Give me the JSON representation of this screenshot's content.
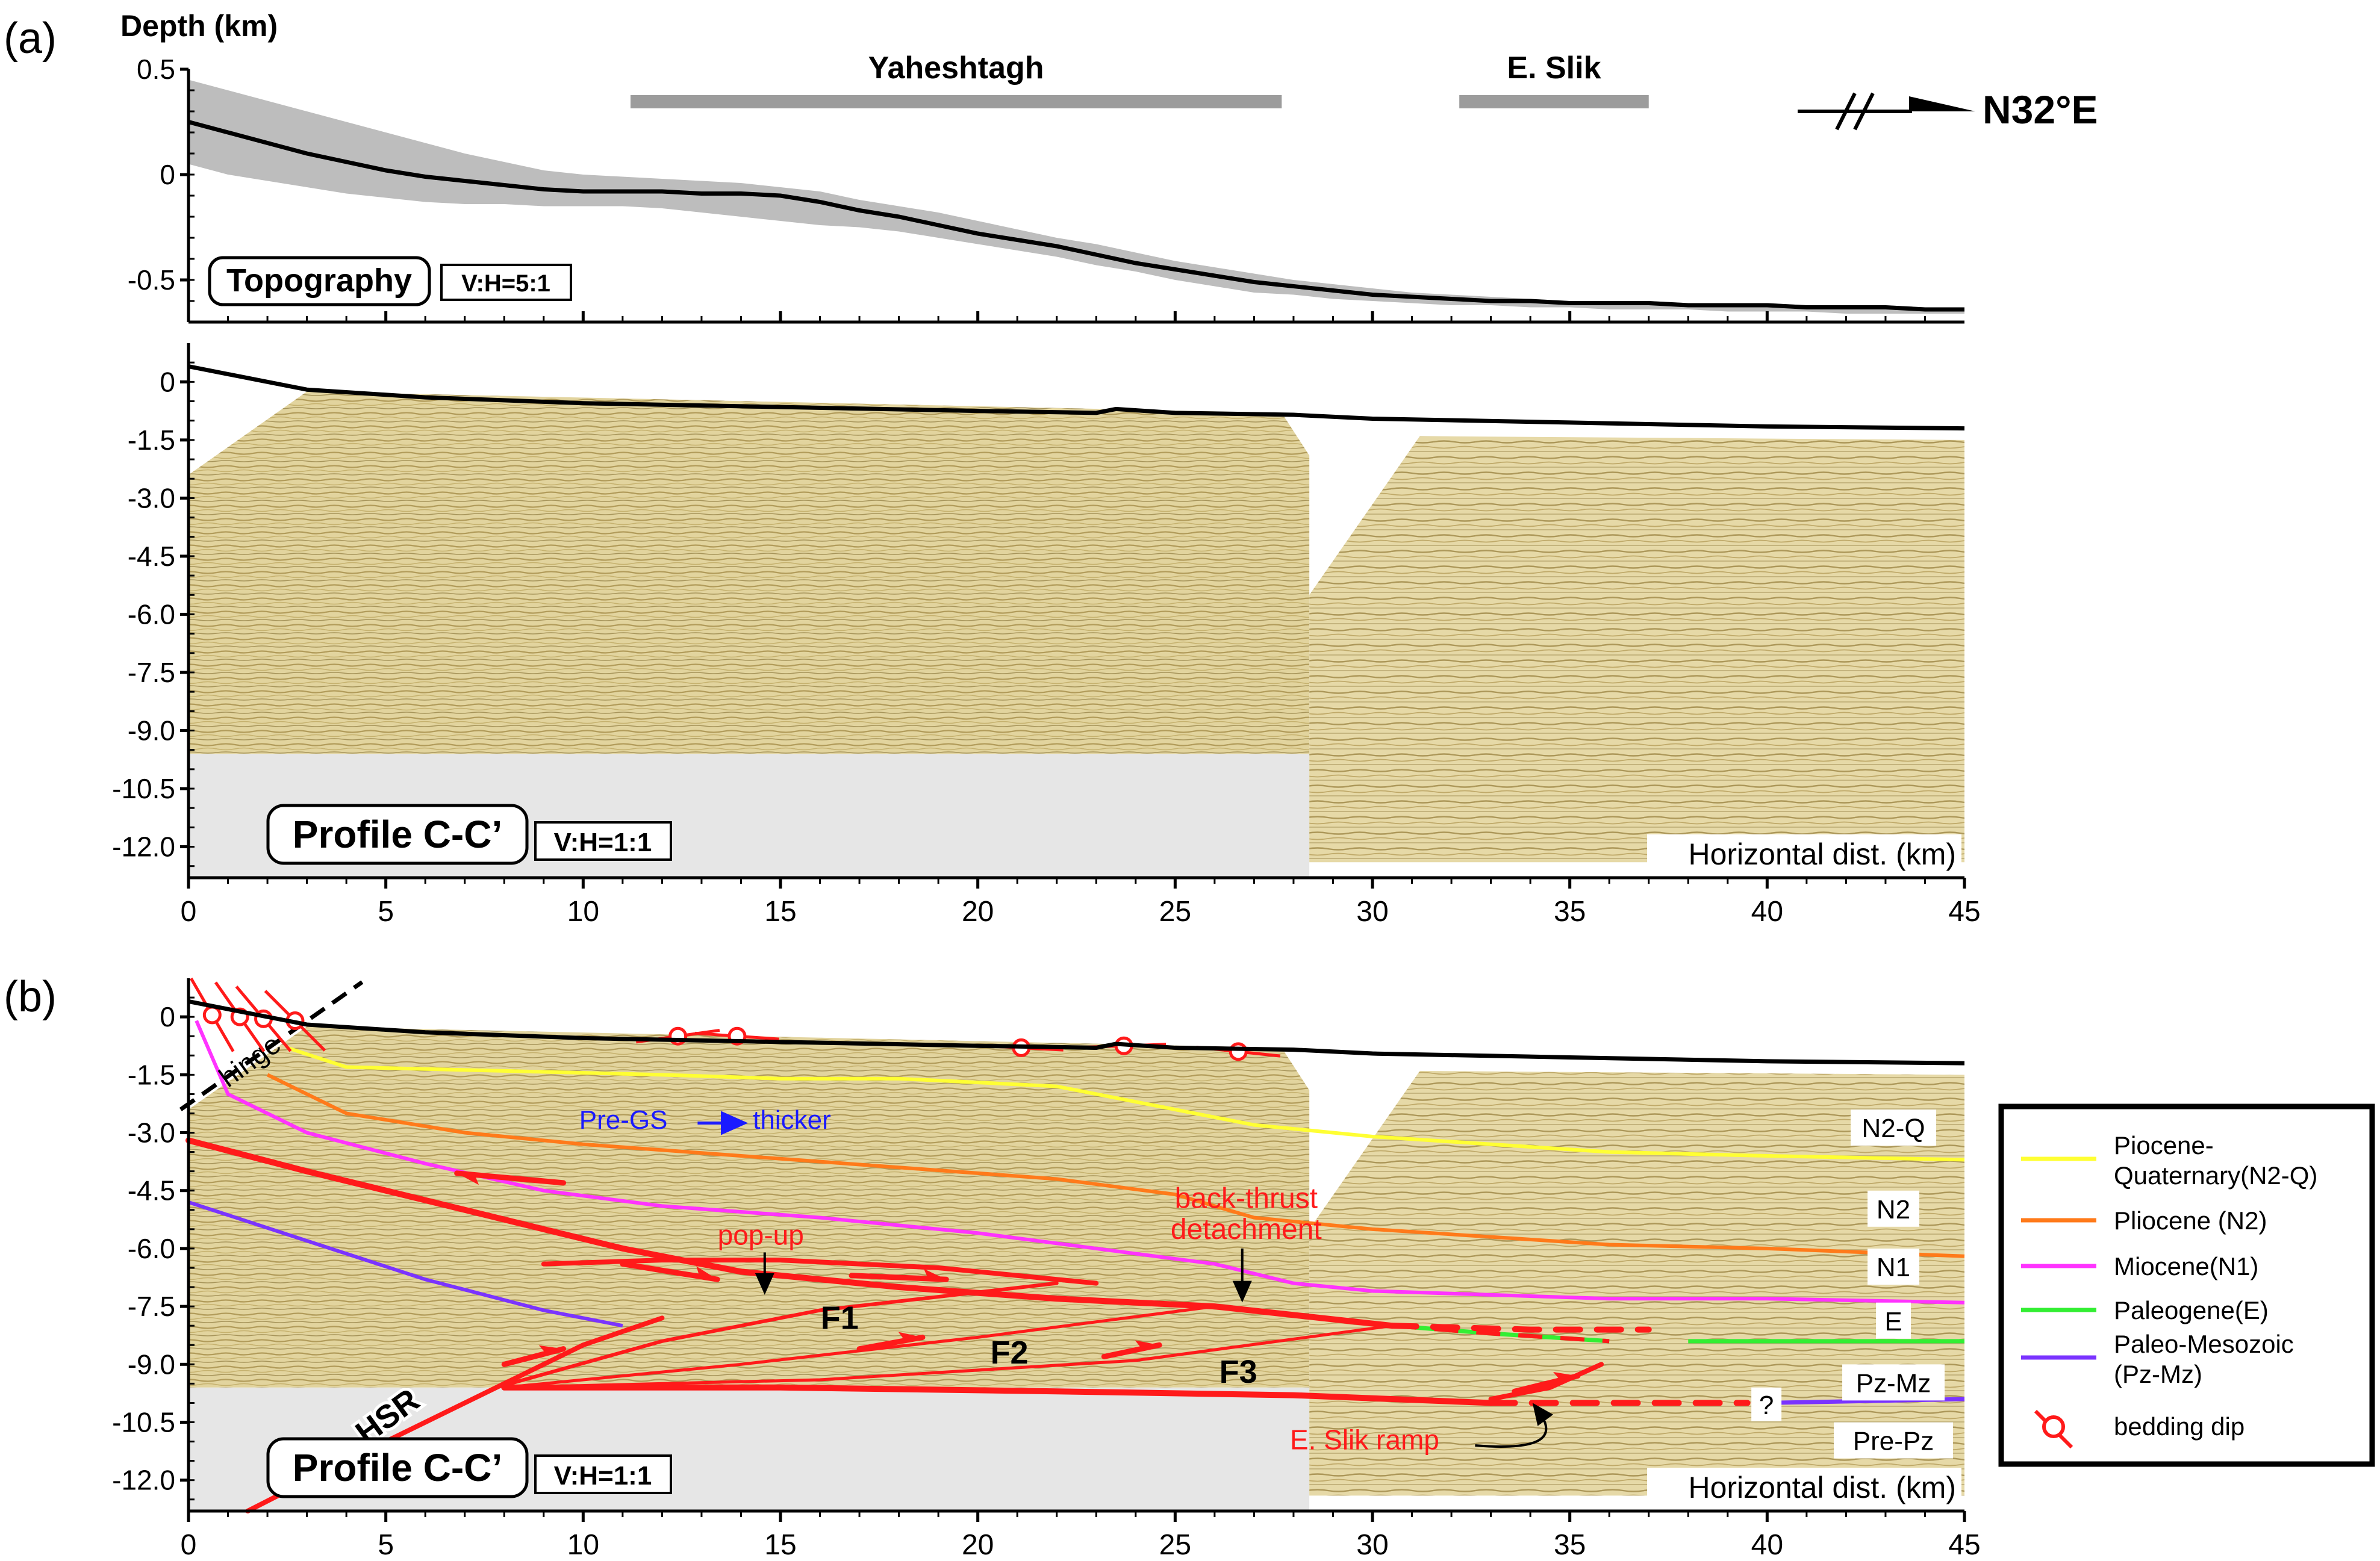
{
  "panel_labels": {
    "a": "(a)",
    "b": "(b)"
  },
  "depth_label": "Depth (km)",
  "direction": {
    "label": "N32°E"
  },
  "ranges": {
    "x": [
      0,
      45
    ],
    "topo_y": [
      0.5,
      -0.7
    ],
    "sec_y": [
      1.0,
      -12.8
    ]
  },
  "x_ticks": [
    "0",
    "5",
    "10",
    "15",
    "20",
    "25",
    "30",
    "35",
    "40",
    "45"
  ],
  "x_tick_values": [
    0,
    5,
    10,
    15,
    20,
    25,
    30,
    35,
    40,
    45
  ],
  "topo_ticks": [
    "0.5",
    "0",
    "-0.5"
  ],
  "topo_tick_values": [
    0.5,
    0,
    -0.5
  ],
  "sec_ticks": [
    "0",
    "-1.5",
    "-3.0",
    "-4.5",
    "-6.0",
    "-7.5",
    "-9.0",
    "-10.5",
    "-12.0"
  ],
  "sec_tick_values": [
    0,
    -1.5,
    -3.0,
    -4.5,
    -6.0,
    -7.5,
    -9.0,
    -10.5,
    -12.0
  ],
  "bars": [
    {
      "label": "Yaheshtagh",
      "x_start": 11.2,
      "x_end": 27.7
    },
    {
      "label": "E. Slik",
      "x_start": 32.2,
      "x_end": 37.0
    }
  ],
  "topo_box": {
    "label": "Topography",
    "scale": "V:H=5:1"
  },
  "profile_box": {
    "label": "Profile C-C’",
    "scale": "V:H=1:1"
  },
  "hdist_label": "Horizontal dist. (km)",
  "topography": {
    "x": [
      0,
      1,
      2,
      3,
      4,
      5,
      6,
      7,
      8,
      9,
      10,
      11,
      12,
      13,
      14,
      15,
      16,
      17,
      18,
      19,
      20,
      21,
      22,
      23,
      24,
      25,
      26,
      27,
      28,
      29,
      30,
      31,
      32,
      33,
      34,
      35,
      36,
      37,
      38,
      39,
      40,
      41,
      42,
      43,
      44,
      45
    ],
    "mean": [
      0.25,
      0.2,
      0.15,
      0.1,
      0.06,
      0.02,
      -0.01,
      -0.03,
      -0.05,
      -0.07,
      -0.08,
      -0.08,
      -0.08,
      -0.09,
      -0.09,
      -0.1,
      -0.13,
      -0.17,
      -0.2,
      -0.24,
      -0.28,
      -0.31,
      -0.34,
      -0.38,
      -0.42,
      -0.45,
      -0.48,
      -0.51,
      -0.53,
      -0.55,
      -0.57,
      -0.58,
      -0.59,
      -0.6,
      -0.6,
      -0.61,
      -0.61,
      -0.61,
      -0.62,
      -0.62,
      -0.62,
      -0.63,
      -0.63,
      -0.63,
      -0.64,
      -0.64
    ],
    "max": [
      0.45,
      0.4,
      0.35,
      0.3,
      0.25,
      0.2,
      0.15,
      0.1,
      0.06,
      0.02,
      0.0,
      -0.01,
      -0.02,
      -0.03,
      -0.04,
      -0.06,
      -0.08,
      -0.12,
      -0.15,
      -0.18,
      -0.22,
      -0.26,
      -0.3,
      -0.33,
      -0.37,
      -0.41,
      -0.44,
      -0.47,
      -0.5,
      -0.52,
      -0.54,
      -0.56,
      -0.57,
      -0.58,
      -0.59,
      -0.6,
      -0.6,
      -0.6,
      -0.61,
      -0.61,
      -0.61,
      -0.62,
      -0.62,
      -0.62,
      -0.63,
      -0.63
    ],
    "min": [
      0.05,
      0.0,
      -0.03,
      -0.06,
      -0.09,
      -0.11,
      -0.13,
      -0.14,
      -0.14,
      -0.15,
      -0.15,
      -0.15,
      -0.16,
      -0.18,
      -0.2,
      -0.22,
      -0.24,
      -0.25,
      -0.27,
      -0.3,
      -0.33,
      -0.36,
      -0.39,
      -0.43,
      -0.46,
      -0.5,
      -0.53,
      -0.56,
      -0.57,
      -0.59,
      -0.6,
      -0.61,
      -0.62,
      -0.62,
      -0.63,
      -0.63,
      -0.64,
      -0.64,
      -0.64,
      -0.65,
      -0.65,
      -0.65,
      -0.66,
      -0.66,
      -0.66,
      -0.66
    ]
  },
  "surface": {
    "x": [
      0,
      3,
      6,
      10,
      15,
      20,
      23,
      23.5,
      25,
      28,
      30,
      35,
      40,
      45
    ],
    "depth": [
      0.4,
      -0.2,
      -0.4,
      -0.55,
      -0.65,
      -0.75,
      -0.8,
      -0.7,
      -0.8,
      -0.85,
      -0.95,
      -1.05,
      -1.15,
      -1.2
    ]
  },
  "seismic": {
    "left_polygon": {
      "x": [
        0,
        3,
        27.7,
        28.4,
        28.4,
        0
      ],
      "depth": [
        -2.4,
        -0.25,
        -0.8,
        -1.9,
        -9.6,
        -9.6
      ]
    },
    "right_polygon": {
      "x": [
        28.4,
        31.2,
        45,
        45,
        28.4
      ],
      "depth": [
        -5.5,
        -1.4,
        -1.5,
        -12.4,
        -12.4
      ]
    },
    "grey_box": {
      "x": [
        0,
        28.4
      ],
      "depth": [
        -9.6,
        -12.8
      ]
    }
  },
  "horizons": [
    {
      "id": "N2-Q",
      "color": "#ffff33",
      "x": [
        2.5,
        4,
        8,
        12,
        15,
        18,
        22,
        24,
        27,
        30,
        33,
        36,
        40,
        45
      ],
      "depth": [
        -0.8,
        -1.3,
        -1.4,
        -1.5,
        -1.6,
        -1.6,
        -1.8,
        -2.2,
        -2.8,
        -3.1,
        -3.3,
        -3.5,
        -3.6,
        -3.7
      ]
    },
    {
      "id": "N2",
      "color": "#ff7a1a",
      "x": [
        2,
        4,
        7,
        10,
        14,
        18,
        22,
        25,
        27,
        30,
        33,
        36,
        40,
        45
      ],
      "depth": [
        -1.5,
        -2.5,
        -3.0,
        -3.3,
        -3.6,
        -3.9,
        -4.2,
        -4.6,
        -5.2,
        -5.5,
        -5.7,
        -5.9,
        -6.0,
        -6.2
      ]
    },
    {
      "id": "N1",
      "color": "#ff33ff",
      "x": [
        0.2,
        1,
        3,
        6,
        9,
        12,
        16,
        20,
        23,
        26,
        28,
        30,
        33,
        36,
        40,
        45
      ],
      "depth": [
        -0.1,
        -2.0,
        -3.0,
        -3.8,
        -4.5,
        -4.9,
        -5.2,
        -5.6,
        -6.0,
        -6.4,
        -6.9,
        -7.1,
        -7.2,
        -7.3,
        -7.3,
        -7.4
      ]
    },
    {
      "id": "E",
      "color": "#33ee33",
      "x": [
        30.5,
        33,
        36,
        38,
        40,
        45
      ],
      "depth": [
        -8.0,
        -8.2,
        -8.4,
        -8.4,
        -8.4,
        -8.4
      ],
      "dashed_until": 37.0
    },
    {
      "id": "Pz-Mz",
      "color": "#7a33ff",
      "x": [
        0,
        3,
        6,
        9,
        11
      ],
      "depth": [
        -4.8,
        -5.8,
        -6.8,
        -7.6,
        -8.0
      ]
    },
    {
      "id": "Pz-Mz-east",
      "color": "#7a33ff",
      "x": [
        33,
        40,
        45
      ],
      "depth": [
        -10.0,
        -10.0,
        -9.9
      ],
      "dashed_until": 39.5
    }
  ],
  "faults": [
    {
      "id": "main-detachment",
      "width": 10,
      "x": [
        0,
        3,
        7,
        11,
        14,
        18,
        22,
        26,
        30.5
      ],
      "depth": [
        -3.2,
        -4.0,
        -5.0,
        -6.0,
        -6.6,
        -7.0,
        -7.3,
        -7.5,
        -8.0
      ]
    },
    {
      "id": "east-detachment",
      "width": 10,
      "dashed": true,
      "x": [
        30.5,
        34,
        37
      ],
      "depth": [
        -8.0,
        -8.1,
        -8.1
      ]
    },
    {
      "id": "back-thrust",
      "width": 8,
      "x": [
        9,
        12,
        15,
        19,
        23
      ],
      "depth": [
        -6.4,
        -6.3,
        -6.3,
        -6.5,
        -6.9
      ]
    },
    {
      "id": "HSR",
      "width": 8,
      "x": [
        1.5,
        4,
        6,
        8,
        10,
        12
      ],
      "depth": [
        -12.8,
        -11.5,
        -10.5,
        -9.5,
        -8.5,
        -7.8
      ]
    },
    {
      "id": "F1",
      "width": 6,
      "x": [
        7.8,
        12,
        16,
        22
      ],
      "depth": [
        -9.6,
        -8.4,
        -7.6,
        -6.9
      ]
    },
    {
      "id": "F2",
      "width": 5,
      "x": [
        8,
        14,
        20,
        26
      ],
      "depth": [
        -9.6,
        -9.0,
        -8.3,
        -7.5
      ]
    },
    {
      "id": "F3",
      "width": 5,
      "x": [
        8,
        16,
        24,
        30.5
      ],
      "depth": [
        -9.6,
        -9.4,
        -8.9,
        -8.0
      ]
    },
    {
      "id": "basal",
      "width": 10,
      "x": [
        8,
        15,
        22,
        28,
        33
      ],
      "depth": [
        -9.6,
        -9.6,
        -9.7,
        -9.8,
        -10.0
      ]
    },
    {
      "id": "basal-east",
      "width": 10,
      "dashed": true,
      "x": [
        33,
        36,
        39.5
      ],
      "depth": [
        -10.0,
        -10.0,
        -10.0
      ]
    },
    {
      "id": "E-Slik-ramp",
      "width": 8,
      "x": [
        33,
        34.5,
        35.8
      ],
      "depth": [
        -9.9,
        -9.6,
        -9.0
      ]
    }
  ],
  "fault_labels": [
    {
      "text": "F1",
      "x": 16.5,
      "depth": -7.8
    },
    {
      "text": "F2",
      "x": 20.8,
      "depth": -8.7
    },
    {
      "text": "F3",
      "x": 26.6,
      "depth": -9.2
    }
  ],
  "annotations": {
    "hinge": "hinge",
    "hsr": "HSR",
    "pre_gs": "Pre-GS",
    "thicker": "thicker",
    "pop_up": "pop-up",
    "back_thrust": "back-thrust",
    "detachment": "detachment",
    "e_slik_ramp": "E. Slik ramp",
    "question": "?"
  },
  "unit_labels": [
    {
      "text": "N2-Q",
      "x": 43.2,
      "depth": -2.9
    },
    {
      "text": "N2",
      "x": 43.2,
      "depth": -5.0
    },
    {
      "text": "N1",
      "x": 43.2,
      "depth": -6.5
    },
    {
      "text": "E",
      "x": 43.2,
      "depth": -7.9
    },
    {
      "text": "Pz-Mz",
      "x": 43.2,
      "depth": -9.5
    },
    {
      "text": "Pre-Pz",
      "x": 43.2,
      "depth": -11.0
    }
  ],
  "bedding_dips": {
    "x": [
      0.6,
      1.3,
      1.9,
      2.7,
      12.4,
      13.9,
      21.1,
      23.7,
      26.6
    ],
    "depth": [
      0.05,
      0.0,
      -0.05,
      -0.1,
      -0.5,
      -0.5,
      -0.8,
      -0.75,
      -0.9
    ],
    "angle": [
      -60,
      -55,
      -50,
      -45,
      8,
      -4,
      -3,
      2,
      -6
    ]
  },
  "legend": {
    "items": [
      {
        "label": "Piocene-",
        "label2": "Quaternary(N2-Q)",
        "color": "#ffff33"
      },
      {
        "label": "Pliocene (N2)",
        "label2": "",
        "color": "#ff7a1a"
      },
      {
        "label": "Miocene(N1)",
        "label2": "",
        "color": "#ff33ff"
      },
      {
        "label": "Paleogene(E)",
        "label2": "",
        "color": "#33ee33"
      },
      {
        "label": "Paleo-Mesozoic",
        "label2": "(Pz-Mz)",
        "color": "#7a33ff"
      }
    ],
    "bedding_label": "bedding dip",
    "bedding_color": "#ff1a1a"
  }
}
